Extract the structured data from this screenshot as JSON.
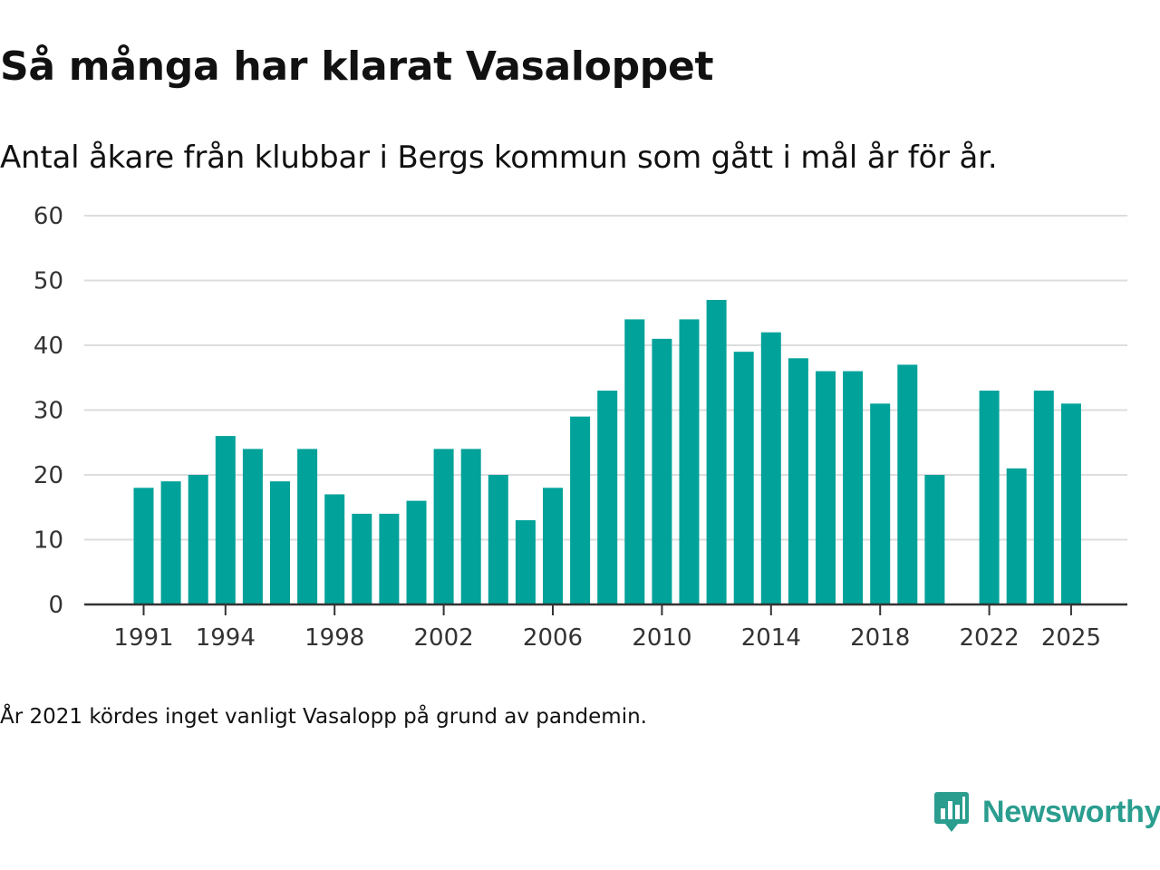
{
  "title": "Så många har klarat Vasaloppet",
  "subtitle": "Antal åkare från klubbar i Bergs kommun som gått i mål år för år.",
  "note": "År 2021 kördes inget vanligt Vasalopp på grund av pandemin.",
  "brand": {
    "name": "Newsworthy",
    "icon": "newsworthy-logo-icon",
    "color": "#2a9d8f"
  },
  "colors": {
    "bar": "#00a29a",
    "grid": "#dddddd",
    "axis": "#333333",
    "text": "#333333"
  },
  "chart_data": {
    "type": "bar",
    "title": "Så många har klarat Vasaloppet",
    "xlabel": "",
    "ylabel": "",
    "ylim": [
      0,
      60
    ],
    "yticks": [
      0,
      10,
      20,
      30,
      40,
      50,
      60
    ],
    "xtick_labels": [
      "1991",
      "1994",
      "1998",
      "2002",
      "2006",
      "2010",
      "2014",
      "2018",
      "2022",
      "2025"
    ],
    "grid": true,
    "categories": [
      "1991",
      "1992",
      "1993",
      "1994",
      "1995",
      "1996",
      "1997",
      "1998",
      "1999",
      "2000",
      "2001",
      "2002",
      "2003",
      "2004",
      "2005",
      "2006",
      "2007",
      "2008",
      "2009",
      "2010",
      "2011",
      "2012",
      "2013",
      "2014",
      "2015",
      "2016",
      "2017",
      "2018",
      "2019",
      "2020",
      "2021",
      "2022",
      "2023",
      "2024",
      "2025"
    ],
    "values": [
      18,
      19,
      20,
      26,
      24,
      19,
      24,
      17,
      14,
      14,
      16,
      24,
      24,
      20,
      13,
      18,
      29,
      33,
      44,
      41,
      44,
      47,
      39,
      42,
      38,
      36,
      36,
      31,
      37,
      20,
      null,
      33,
      21,
      33,
      31
    ]
  }
}
